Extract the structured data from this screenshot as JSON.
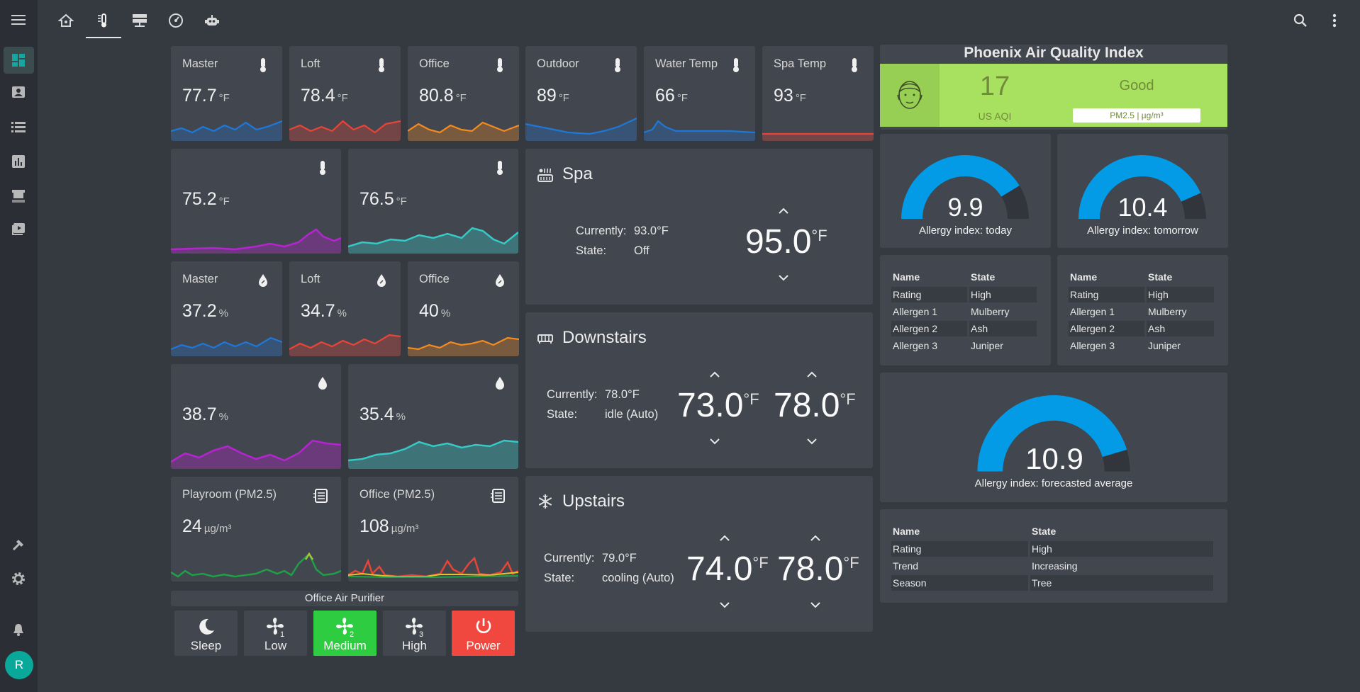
{
  "sidebar": {
    "avatar_initial": "R"
  },
  "sensors_temp_top": [
    {
      "name": "Master",
      "value": "77.7",
      "unit": "°F",
      "color": "#1e78d8"
    },
    {
      "name": "Loft",
      "value": "78.4",
      "unit": "°F",
      "color": "#e84537"
    },
    {
      "name": "Office",
      "value": "80.8",
      "unit": "°F",
      "color": "#f58a1f"
    },
    {
      "name": "Outdoor",
      "value": "89",
      "unit": "°F",
      "color": "#1e78d8"
    },
    {
      "name": "Water Temp",
      "value": "66",
      "unit": "°F",
      "color": "#1e78d8"
    },
    {
      "name": "Spa Temp",
      "value": "93",
      "unit": "°F",
      "color": "#e84537"
    }
  ],
  "sensors_temp_big": [
    {
      "value": "75.2",
      "unit": "°F",
      "color": "#b624d2"
    },
    {
      "value": "76.5",
      "unit": "°F",
      "color": "#36c9c6"
    }
  ],
  "sensors_hum": [
    {
      "name": "Master",
      "value": "37.2",
      "unit": "%",
      "color": "#1e78d8"
    },
    {
      "name": "Loft",
      "value": "34.7",
      "unit": "%",
      "color": "#e84537"
    },
    {
      "name": "Office",
      "value": "40",
      "unit": "%",
      "color": "#f58a1f"
    }
  ],
  "sensors_hum_big": [
    {
      "value": "38.7",
      "unit": "%",
      "color": "#b624d2"
    },
    {
      "value": "35.4",
      "unit": "%",
      "color": "#36c9c6"
    }
  ],
  "pm25": [
    {
      "name": "Playroom (PM2.5)",
      "value": "24",
      "unit": "µg/m³"
    },
    {
      "name": "Office (PM2.5)",
      "value": "108",
      "unit": "µg/m³"
    }
  ],
  "purifier": {
    "title": "Office Air Purifier",
    "buttons": [
      {
        "label": "Sleep",
        "icon": "moon-icon",
        "state": "off"
      },
      {
        "label": "Low",
        "icon": "fan-1-icon",
        "state": "off"
      },
      {
        "label": "Medium",
        "icon": "fan-2-icon",
        "state": "on",
        "color": "#2ecc40"
      },
      {
        "label": "High",
        "icon": "fan-3-icon",
        "state": "off"
      },
      {
        "label": "Power",
        "icon": "power-icon",
        "state": "on",
        "color": "#f0483e"
      }
    ]
  },
  "thermostats": {
    "spa": {
      "title": "Spa",
      "icon": "hot-tub-icon",
      "currently_label": "Currently:",
      "currently": "93.0°F",
      "state_label": "State:",
      "state": "Off",
      "setpoint": "95.0",
      "unit": "°F"
    },
    "downstairs": {
      "title": "Downstairs",
      "icon": "radiator-icon",
      "currently_label": "Currently:",
      "currently": "78.0°F",
      "state_label": "State:",
      "state": "idle (Auto)",
      "low": "73.0",
      "high": "78.0",
      "unit": "°F"
    },
    "upstairs": {
      "title": "Upstairs",
      "icon": "snowflake-icon",
      "currently_label": "Currently:",
      "currently": "79.0°F",
      "state_label": "State:",
      "state": "cooling (Auto)",
      "low": "74.0",
      "high": "78.0",
      "unit": "°F"
    }
  },
  "aqi": {
    "title": "Phoenix Air Quality Index",
    "value": "17",
    "value_label": "US AQI",
    "status": "Good",
    "pollutant": "PM2.5 | µg/m³",
    "bg_color": "#a8e05f",
    "status_color": "#718b3a"
  },
  "allergy": {
    "today": {
      "value": "9.9",
      "label": "Allergy index: today",
      "fraction": 0.825
    },
    "tomorrow": {
      "value": "10.4",
      "label": "Allergy index: tomorrow",
      "fraction": 0.867
    },
    "forecast": {
      "value": "10.9",
      "label": "Allergy index: forecasted average",
      "fraction": 0.908
    },
    "table_headers": [
      "Name",
      "State"
    ],
    "today_rows": [
      [
        "Rating",
        "High"
      ],
      [
        "Allergen 1",
        "Mulberry"
      ],
      [
        "Allergen 2",
        "Ash"
      ],
      [
        "Allergen 3",
        "Juniper"
      ]
    ],
    "tomorrow_rows": [
      [
        "Rating",
        "High"
      ],
      [
        "Allergen 1",
        "Mulberry"
      ],
      [
        "Allergen 2",
        "Ash"
      ],
      [
        "Allergen 3",
        "Juniper"
      ]
    ],
    "forecast_rows": [
      [
        "Rating",
        "High"
      ],
      [
        "Trend",
        "Increasing"
      ],
      [
        "Season",
        "Tree"
      ]
    ],
    "gauge_color": "#039be5"
  }
}
